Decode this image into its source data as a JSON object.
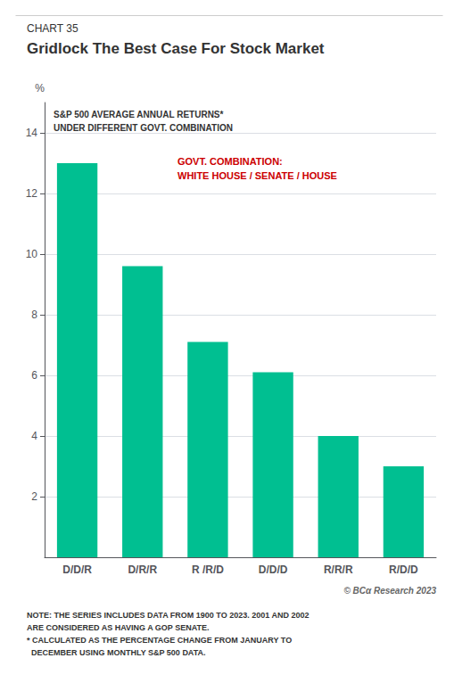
{
  "chart_data": {
    "type": "bar",
    "subtitle": "CHART 35",
    "title": "Gridlock The Best Case For Stock Market",
    "categories": [
      "D/D/R",
      "D/R/R",
      "R /R/D",
      "D/D/D",
      "R/R/R",
      "R/D/D"
    ],
    "values": [
      13.0,
      9.6,
      7.1,
      6.1,
      4.0,
      3.0
    ],
    "color": "#00BF91",
    "ylabel": "%",
    "ylim": [
      0,
      15
    ],
    "yticks": [
      2,
      4,
      6,
      8,
      10,
      12,
      14
    ],
    "grid": true,
    "inner_title": [
      "S&P 500 AVERAGE ANNUAL RETURNS*",
      "UNDER DIFFERENT GOVT. COMBINATION"
    ],
    "annotation": {
      "lines": [
        "GOVT. COMBINATION:",
        "WHITE HOUSE / SENATE / HOUSE"
      ],
      "color": "#CC0000"
    },
    "watermark": "© BCα Research 2023",
    "notes": [
      "NOTE: THE SERIES INCLUDES DATA FROM 1900 TO 2023. 2001 AND 2002",
      "ARE CONSIDERED AS HAVING A GOP SENATE.",
      "* CALCULATED AS THE PERCENTAGE CHANGE FROM JANUARY TO",
      "  DECEMBER USING MONTHLY S&P 500 DATA."
    ]
  }
}
